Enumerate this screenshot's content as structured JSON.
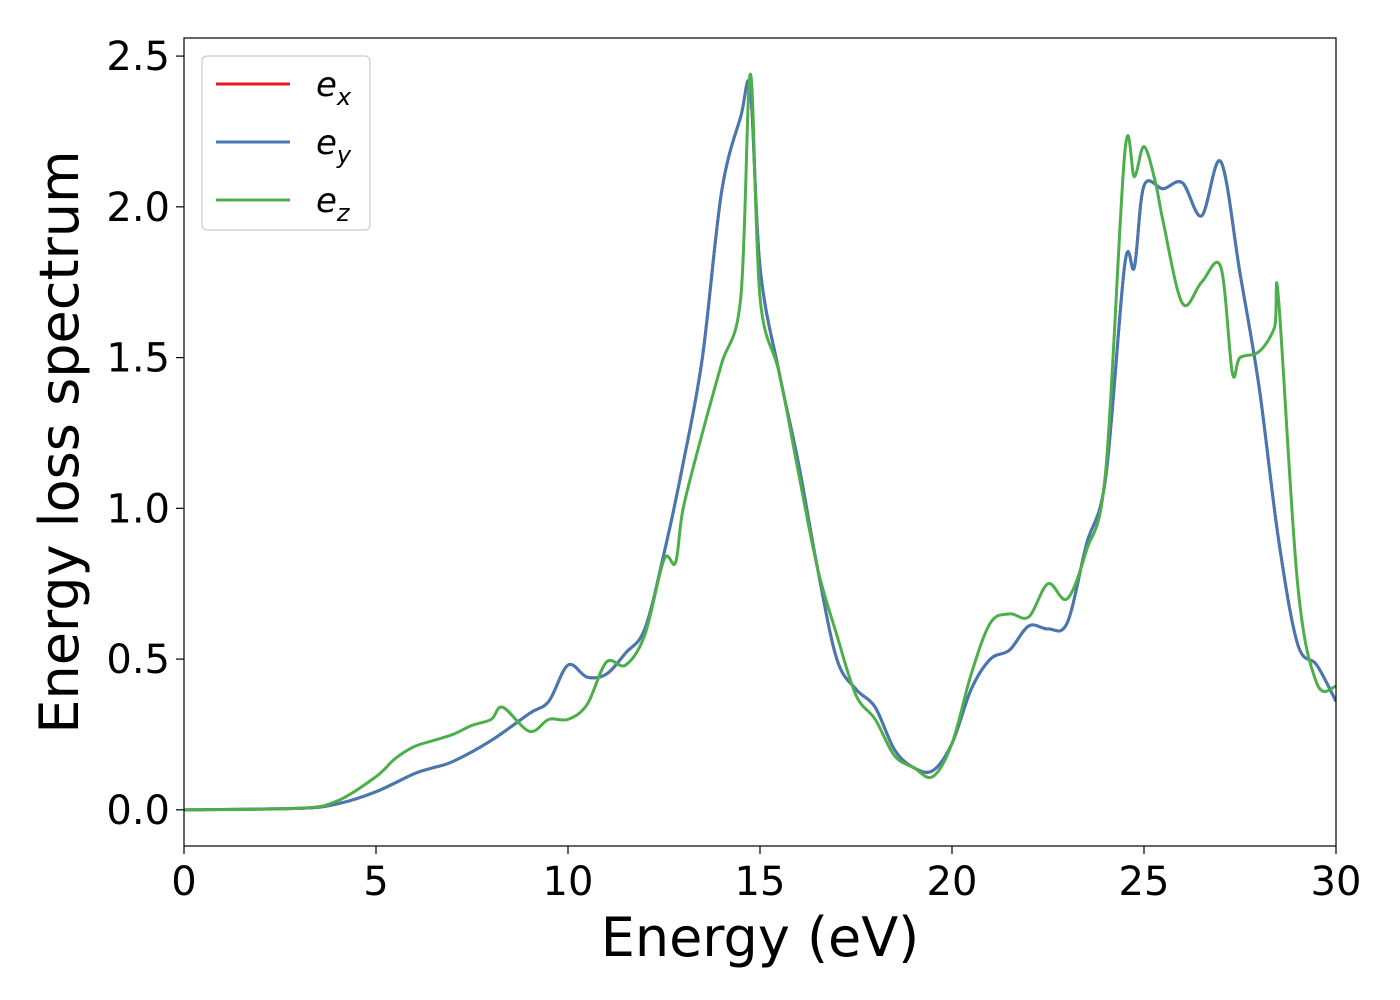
{
  "chart_data": {
    "type": "line",
    "title": "",
    "xlabel": "Energy (eV)",
    "ylabel": "Energy loss spectrum",
    "xlim": [
      0,
      30
    ],
    "ylim": [
      -0.12,
      2.56
    ],
    "xticks": [
      0,
      5,
      10,
      15,
      20,
      25,
      30
    ],
    "xtick_labels": [
      "0",
      "5",
      "10",
      "15",
      "20",
      "25",
      "30"
    ],
    "yticks": [
      0.0,
      0.5,
      1.0,
      1.5,
      2.0,
      2.5
    ],
    "ytick_labels": [
      "0.0",
      "0.5",
      "1.0",
      "1.5",
      "2.0",
      "2.5"
    ],
    "grid": false,
    "legend_position": "upper-left",
    "series": [
      {
        "name": "e_x",
        "label_base": "e",
        "label_sub": "x",
        "color": "#e41a1c",
        "x": [
          0,
          3,
          4,
          5,
          6,
          6.5,
          7,
          8,
          9,
          9.5,
          10,
          10.5,
          11,
          11.5,
          12,
          12.5,
          13,
          13.5,
          14,
          14.5,
          14.75,
          15,
          15.5,
          16,
          16.5,
          17,
          17.5,
          18,
          18.5,
          19,
          19.5,
          20,
          20.5,
          21,
          21.5,
          22,
          22.5,
          23,
          23.5,
          24,
          24.5,
          24.75,
          25,
          25.5,
          26,
          26.5,
          27,
          27.5,
          28,
          28.5,
          29,
          29.5,
          30
        ],
        "y": [
          0,
          0.005,
          0.02,
          0.06,
          0.12,
          0.14,
          0.16,
          0.23,
          0.32,
          0.36,
          0.48,
          0.44,
          0.45,
          0.52,
          0.6,
          0.85,
          1.15,
          1.5,
          2.05,
          2.3,
          2.39,
          1.8,
          1.45,
          1.15,
          0.8,
          0.5,
          0.4,
          0.34,
          0.2,
          0.14,
          0.13,
          0.22,
          0.4,
          0.5,
          0.53,
          0.61,
          0.6,
          0.62,
          0.88,
          1.1,
          1.81,
          1.8,
          2.07,
          2.06,
          2.08,
          1.97,
          2.15,
          1.78,
          1.4,
          0.9,
          0.55,
          0.48,
          0.36
        ]
      },
      {
        "name": "e_y",
        "label_base": "e",
        "label_sub": "y",
        "color": "#4479b4",
        "x": [
          0,
          3,
          4,
          5,
          6,
          6.5,
          7,
          8,
          9,
          9.5,
          10,
          10.5,
          11,
          11.5,
          12,
          12.5,
          13,
          13.5,
          14,
          14.5,
          14.75,
          15,
          15.5,
          16,
          16.5,
          17,
          17.5,
          18,
          18.5,
          19,
          19.5,
          20,
          20.5,
          21,
          21.5,
          22,
          22.5,
          23,
          23.5,
          24,
          24.5,
          24.75,
          25,
          25.5,
          26,
          26.5,
          27,
          27.5,
          28,
          28.5,
          29,
          29.5,
          30
        ],
        "y": [
          0,
          0.005,
          0.02,
          0.06,
          0.12,
          0.14,
          0.16,
          0.23,
          0.32,
          0.36,
          0.48,
          0.44,
          0.45,
          0.52,
          0.6,
          0.85,
          1.15,
          1.5,
          2.05,
          2.3,
          2.39,
          1.8,
          1.45,
          1.15,
          0.8,
          0.5,
          0.4,
          0.34,
          0.2,
          0.14,
          0.13,
          0.22,
          0.4,
          0.5,
          0.53,
          0.61,
          0.6,
          0.62,
          0.88,
          1.1,
          1.81,
          1.8,
          2.07,
          2.06,
          2.08,
          1.97,
          2.15,
          1.78,
          1.4,
          0.9,
          0.55,
          0.48,
          0.36
        ]
      },
      {
        "name": "e_z",
        "label_base": "e",
        "label_sub": "z",
        "color": "#4daf4a",
        "x": [
          0,
          3,
          4,
          5,
          5.5,
          6,
          6.5,
          7,
          7.5,
          8,
          8.3,
          9,
          9.5,
          10,
          10.5,
          11,
          11.5,
          12,
          12.5,
          12.8,
          13,
          13.5,
          14,
          14.5,
          14.75,
          15,
          15.5,
          16,
          16.5,
          17,
          17.5,
          18,
          18.5,
          19,
          19.5,
          20,
          20.5,
          21,
          21.5,
          22,
          22.5,
          23,
          23.5,
          24,
          24.5,
          24.75,
          25,
          25.3,
          25.5,
          26,
          26.5,
          27,
          27.3,
          27.5,
          28,
          28.4,
          28.5,
          29,
          29.5,
          30
        ],
        "y": [
          0,
          0.005,
          0.03,
          0.11,
          0.17,
          0.21,
          0.23,
          0.25,
          0.28,
          0.3,
          0.34,
          0.26,
          0.3,
          0.3,
          0.35,
          0.49,
          0.48,
          0.58,
          0.83,
          0.82,
          1.0,
          1.25,
          1.48,
          1.7,
          2.44,
          1.7,
          1.45,
          1.12,
          0.8,
          0.58,
          0.38,
          0.3,
          0.18,
          0.14,
          0.11,
          0.22,
          0.45,
          0.62,
          0.65,
          0.64,
          0.75,
          0.7,
          0.86,
          1.12,
          2.18,
          2.1,
          2.2,
          2.08,
          1.95,
          1.68,
          1.75,
          1.8,
          1.45,
          1.5,
          1.52,
          1.6,
          1.7,
          0.75,
          0.42,
          0.41
        ]
      }
    ]
  }
}
